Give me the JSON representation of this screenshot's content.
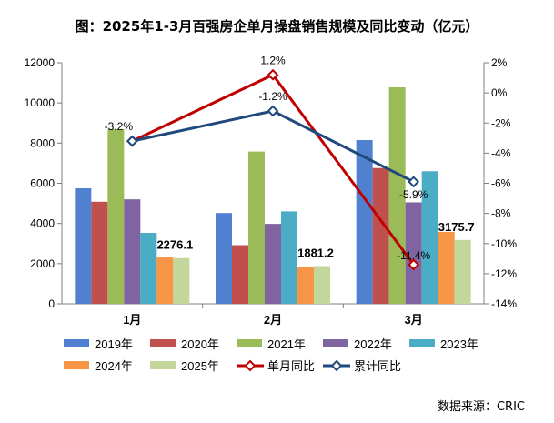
{
  "title": "图：2025年1-3月百强房企单月操盘销售规模及同比变动（亿元）",
  "source": "数据来源：CRIC",
  "chart_data": {
    "type": "bar",
    "categories": [
      "1月",
      "2月",
      "3月"
    ],
    "series": [
      {
        "name": "2019年",
        "values": [
          5750,
          4520,
          8150
        ],
        "color": "#4f81d0"
      },
      {
        "name": "2020年",
        "values": [
          5080,
          2920,
          6760
        ],
        "color": "#c0504d"
      },
      {
        "name": "2021年",
        "values": [
          8700,
          7580,
          10780
        ],
        "color": "#9bbb59"
      },
      {
        "name": "2022年",
        "values": [
          5200,
          3980,
          5050
        ],
        "color": "#8064a2"
      },
      {
        "name": "2023年",
        "values": [
          3530,
          4600,
          6600
        ],
        "color": "#4bacc6"
      },
      {
        "name": "2024年",
        "values": [
          2330,
          1840,
          3580
        ],
        "color": "#f79646"
      },
      {
        "name": "2025年",
        "values": [
          2276.1,
          1881.2,
          3175.7
        ],
        "color": "#c3d69b"
      }
    ],
    "bar_labels": [
      "2276.1",
      "1881.2",
      "3175.7"
    ],
    "lines": [
      {
        "name": "单月同比",
        "values": [
          -3.2,
          1.2,
          -11.4
        ],
        "labels": [
          "-3.2%",
          "1.2%",
          "-11.4%"
        ],
        "color": "#c00000"
      },
      {
        "name": "累计同比",
        "values": [
          -3.2,
          -1.2,
          -5.9
        ],
        "labels": [
          "",
          "-1.2%",
          "-5.9%"
        ],
        "color": "#1f497d"
      }
    ],
    "y_left": {
      "min": 0,
      "max": 12000,
      "ticks": [
        "0",
        "2000",
        "4000",
        "6000",
        "8000",
        "10000",
        "12000"
      ]
    },
    "y_right": {
      "min": -14,
      "max": 2,
      "ticks": [
        "-14%",
        "-12%",
        "-10%",
        "-8%",
        "-6%",
        "-4%",
        "-2%",
        "0%",
        "2%"
      ]
    },
    "legend_position": "bottom"
  }
}
